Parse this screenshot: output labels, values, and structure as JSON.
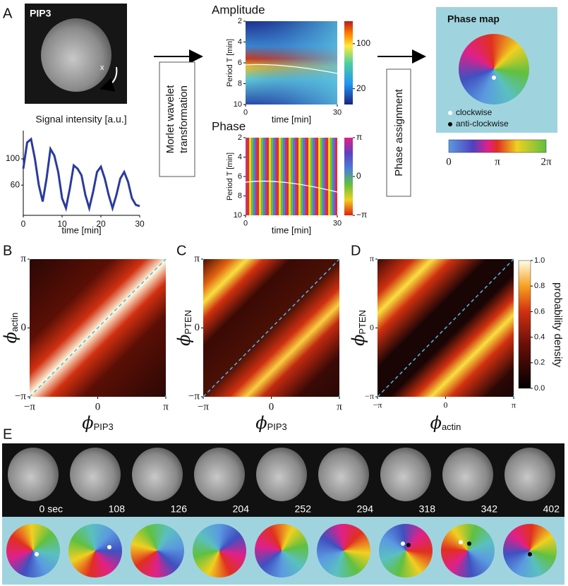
{
  "panel_labels": [
    "A",
    "B",
    "C",
    "D",
    "E"
  ],
  "panel_a": {
    "image_label": "PIP3",
    "cross": "x",
    "arrow1_text": [
      "Morlet wavelet",
      "transformation"
    ],
    "arrow2_text": "Phase assignment",
    "phase_map": {
      "title": "Phase map",
      "legend": [
        "clockwise",
        "anti-clockwise"
      ],
      "colorbar_ticks": [
        {
          "value": 0,
          "label": "0"
        },
        {
          "value": 3.14159,
          "label": "π"
        },
        {
          "value": 6.28318,
          "label": "2π"
        }
      ],
      "clim": [
        0,
        6.28318
      ]
    }
  },
  "chart_data": [
    {
      "type": "line",
      "title": "Signal intensity [a.u.]",
      "x_label": "time [min]",
      "color": "#2b3a9c",
      "x": [
        0,
        1,
        2,
        3,
        4,
        5,
        6,
        7,
        8,
        9,
        10,
        11,
        12,
        13,
        14,
        15,
        16,
        17,
        18,
        19,
        20,
        21,
        22,
        23,
        24,
        25,
        26,
        27,
        28,
        29,
        30
      ],
      "values": [
        85,
        125,
        130,
        100,
        60,
        35,
        70,
        115,
        105,
        80,
        40,
        25,
        55,
        90,
        85,
        75,
        45,
        25,
        50,
        80,
        88,
        70,
        45,
        25,
        45,
        70,
        80,
        65,
        40,
        30,
        28
      ],
      "xlim": [
        0,
        30
      ],
      "xticks": [
        0,
        10,
        20,
        30
      ],
      "ylim": [
        14,
        143
      ],
      "yticks": [
        60,
        100
      ]
    },
    {
      "type": "heatmap",
      "title": "Amplitude",
      "x_label": "time [min]",
      "y_label": "Period T [min]",
      "xlim": [
        0,
        30
      ],
      "xticks": [
        0,
        30
      ],
      "ylim": [
        10,
        2
      ],
      "yticks": [
        2,
        4,
        6,
        8,
        10
      ],
      "clim": [
        -8,
        140
      ],
      "cticks": [
        20,
        100
      ]
    },
    {
      "type": "heatmap",
      "title": "Phase",
      "x_label": "time [min]",
      "y_label": "Period T [min]",
      "xlim": [
        0,
        30
      ],
      "xticks": [
        0,
        30
      ],
      "ylim": [
        10,
        2
      ],
      "yticks": [
        2,
        4,
        6,
        8,
        10
      ],
      "clim": [
        -3.14159,
        3.14159
      ],
      "cticks": [
        {
          "value": 3.14159,
          "label": "π"
        },
        0,
        {
          "value": -3.14159,
          "label": "−π"
        }
      ]
    },
    {
      "type": "heatmap",
      "x_label": {
        "symbol": "ϕ",
        "subscript": "PIP3"
      },
      "y_label": {
        "symbol": "ϕ",
        "subscript": "actin"
      },
      "xlim": [
        -3.14159,
        3.14159
      ],
      "ylim": [
        -3.14159,
        3.14159
      ],
      "xticks": [
        {
          "value": -3.14159,
          "label": "−π"
        },
        0,
        {
          "value": 3.14159,
          "label": "π"
        }
      ],
      "yticks": [
        {
          "value": -3.14159,
          "label": "−π"
        },
        0,
        {
          "value": 3.14159,
          "label": "π"
        }
      ]
    },
    {
      "type": "heatmap",
      "x_label": {
        "symbol": "ϕ",
        "subscript": "PIP3"
      },
      "y_label": {
        "symbol": "ϕ",
        "subscript": "PTEN"
      },
      "xlim": [
        -3.14159,
        3.14159
      ],
      "ylim": [
        -3.14159,
        3.14159
      ],
      "xticks": [
        {
          "value": -3.14159,
          "label": "−π"
        },
        0,
        {
          "value": 3.14159,
          "label": "π"
        }
      ],
      "yticks": [
        {
          "value": -3.14159,
          "label": "−π"
        },
        0,
        {
          "value": 3.14159,
          "label": "π"
        }
      ]
    },
    {
      "type": "heatmap",
      "x_label": {
        "symbol": "ϕ",
        "subscript": "actin"
      },
      "y_label": {
        "symbol": "ϕ",
        "subscript": "PTEN"
      },
      "xlim": [
        -3.14159,
        3.14159
      ],
      "ylim": [
        -3.14159,
        3.14159
      ],
      "xticks": [
        {
          "value": -3.14159,
          "label": "−π"
        },
        0,
        {
          "value": 3.14159,
          "label": "π"
        }
      ],
      "yticks": [
        {
          "value": -3.14159,
          "label": "−π"
        },
        0,
        {
          "value": 3.14159,
          "label": "π"
        }
      ],
      "colorbar_label": "probability density",
      "clim": [
        0,
        1
      ],
      "cticks": [
        {
          "value": 0,
          "label": "0.0"
        },
        0.2,
        0.4,
        0.6,
        0.8,
        {
          "value": 1,
          "label": "1.0"
        }
      ]
    }
  ],
  "panel_e": {
    "times": [
      "0 sec",
      "108",
      "126",
      "204",
      "252",
      "294",
      "318",
      "342",
      "402"
    ]
  }
}
